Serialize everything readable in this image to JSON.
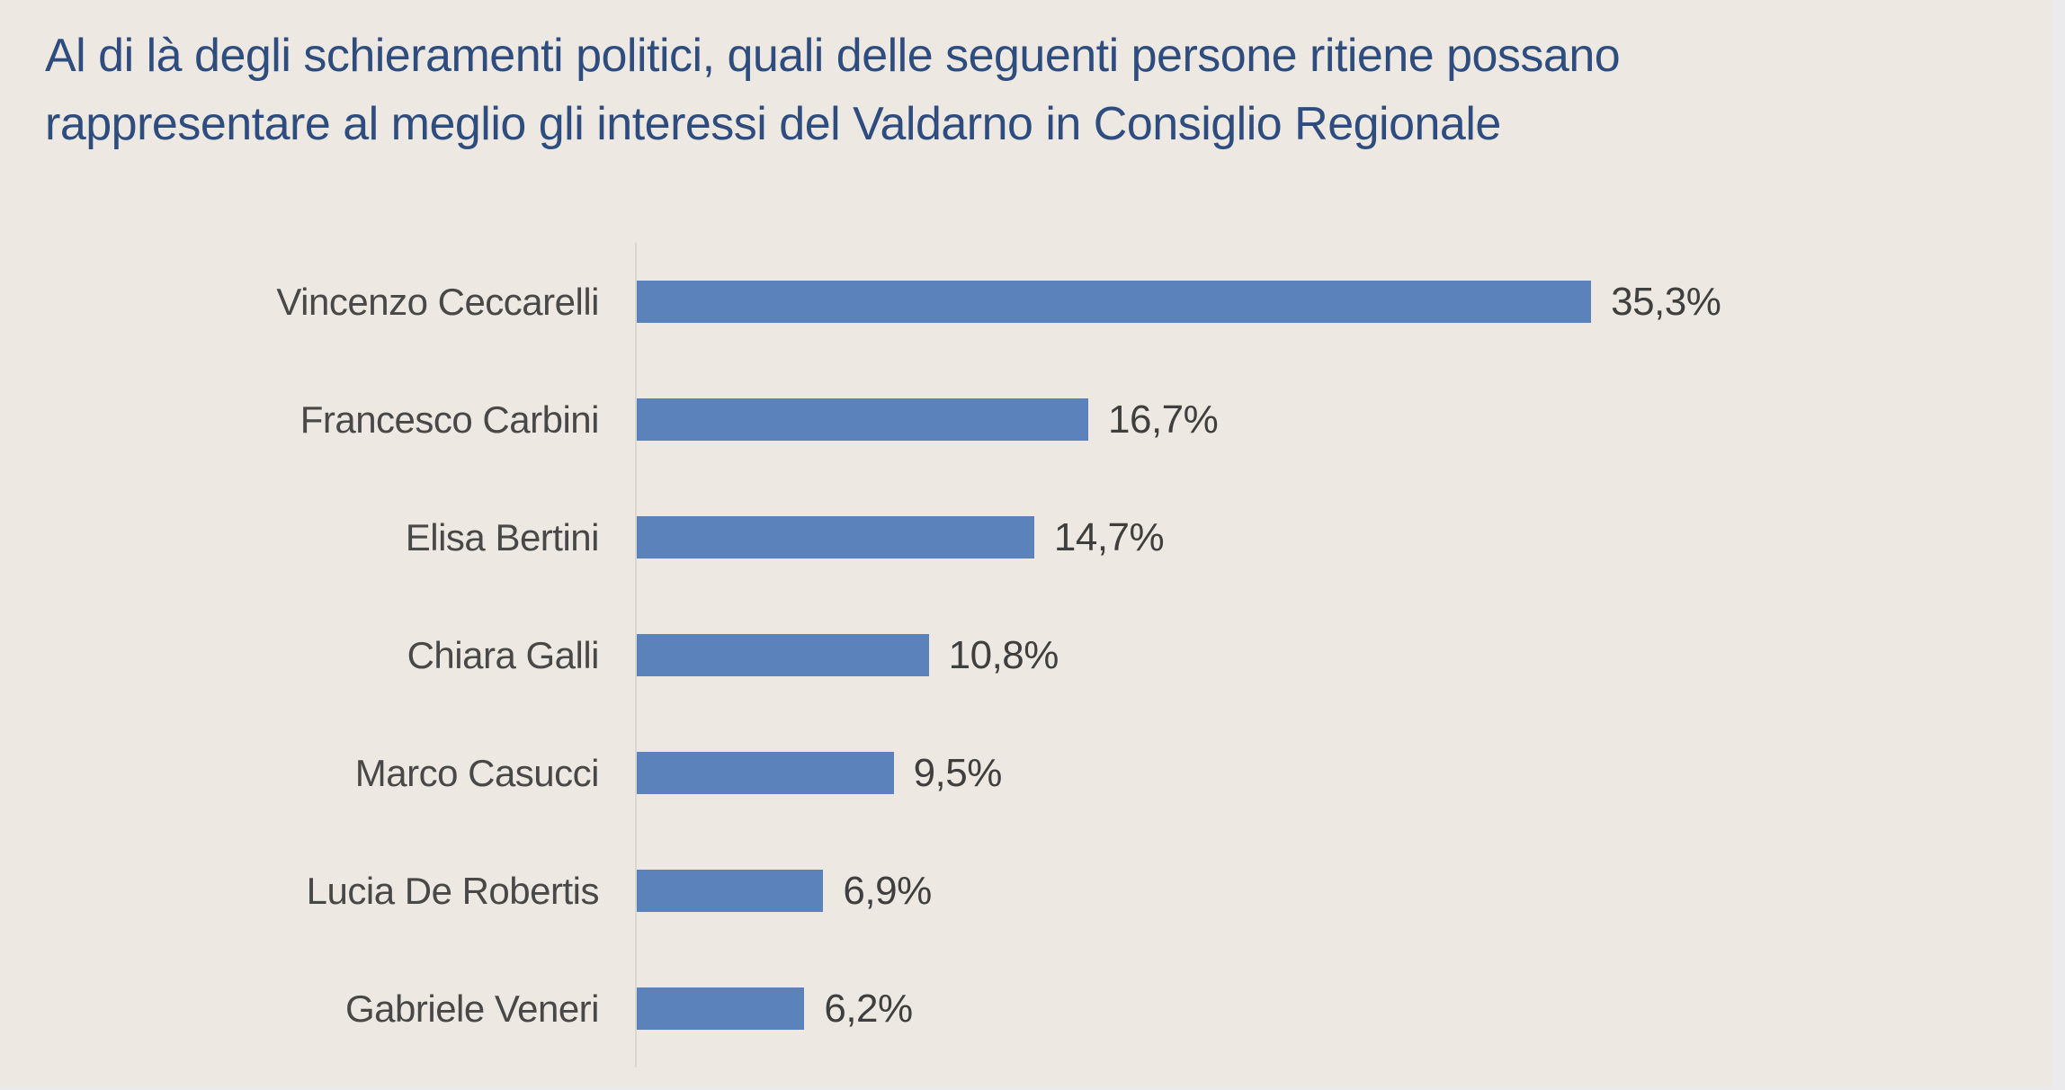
{
  "title": "Al di là degli schieramenti politici, quali delle seguenti persone ritiene possano rappresentare al meglio gli interessi del Valdarno in Consiglio Regionale",
  "title_lines": [
    "Al di là degli schieramenti politici, quali delle seguenti persone ritiene possano",
    "rappresentare al meglio gli interessi del Valdarno in Consiglio Regionale"
  ],
  "chart_data": {
    "type": "bar",
    "orientation": "horizontal",
    "title": "Al di là degli schieramenti politici, quali delle seguenti persone ritiene possano rappresentare al meglio gli interessi del Valdarno in Consiglio Regionale",
    "categories": [
      "Vincenzo Ceccarelli",
      "Francesco Carbini",
      "Elisa Bertini",
      "Chiara Galli",
      "Marco Casucci",
      "Lucia De Robertis",
      "Gabriele Veneri"
    ],
    "values": [
      35.3,
      16.7,
      14.7,
      10.8,
      9.5,
      6.9,
      6.2
    ],
    "value_labels": [
      "35,3%",
      "16,7%",
      "14,7%",
      "10,8%",
      "9,5%",
      "6,9%",
      "6,2%"
    ],
    "xlabel": "",
    "ylabel": "",
    "xlim": [
      0,
      40
    ],
    "grid": false,
    "legend": false,
    "data_labels": true,
    "colors": {
      "bar": "#5B82BB",
      "background": "#EDE9E2",
      "title_text": "#2E4C7E",
      "category_text": "#484848",
      "value_text": "#3F3F3F",
      "axis_line": "#D9D7D2"
    }
  }
}
